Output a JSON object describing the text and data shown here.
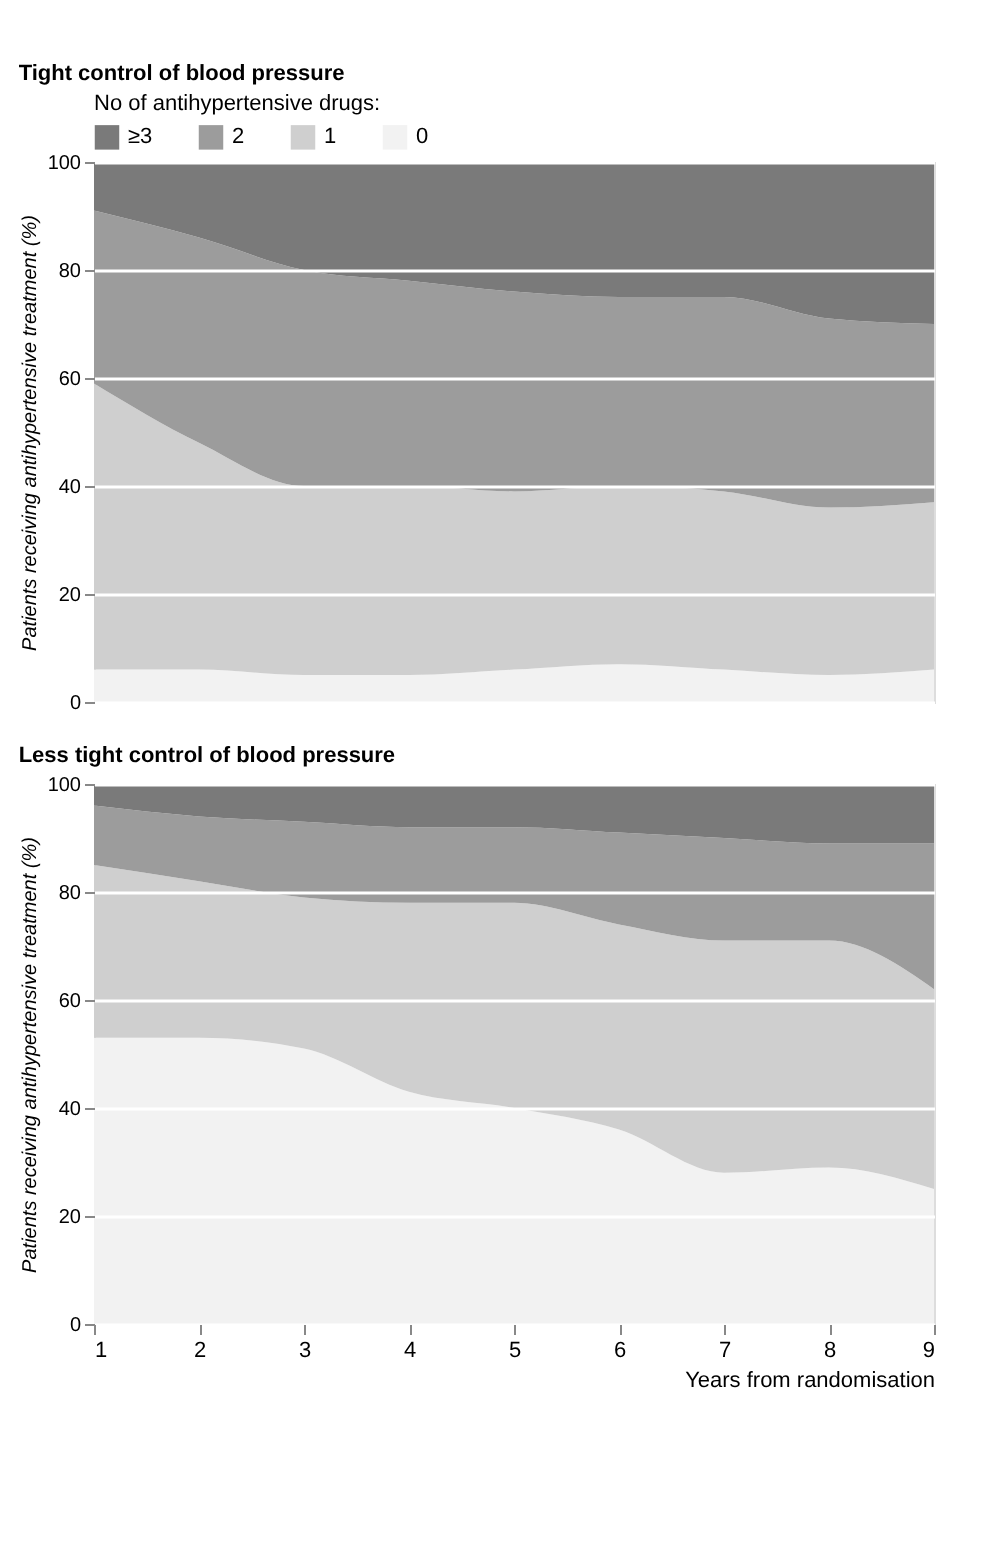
{
  "chart_data": [
    {
      "type": "area",
      "stacked": true,
      "title": "Tight control of blood pressure",
      "ylabel": "Patients receiving antihypertensive treatment (%)",
      "legend_title": "No of antihypertensive drugs:",
      "legend": "top",
      "x": [
        1,
        2,
        3,
        4,
        5,
        6,
        7,
        8,
        9
      ],
      "xlim": [
        1,
        9
      ],
      "xticks": [
        1,
        2,
        3,
        4,
        5,
        6,
        7,
        8,
        9
      ],
      "ylim": [
        0,
        100
      ],
      "yticks": [
        0,
        20,
        40,
        60,
        80,
        100
      ],
      "grid": "y",
      "tick_labels": "y",
      "series": [
        {
          "name": "0",
          "color": "#f2f2f2",
          "values": [
            6,
            6,
            5,
            5,
            6,
            7,
            6,
            5,
            6
          ]
        },
        {
          "name": "1",
          "color": "#cfcfcf",
          "values": [
            53,
            42,
            35,
            35,
            33,
            33,
            33,
            31,
            31
          ]
        },
        {
          "name": "2",
          "color": "#9c9c9c",
          "values": [
            32,
            38,
            40,
            38,
            37,
            35,
            36,
            35,
            33
          ]
        },
        {
          "name": "≥3",
          "color": "#7a7a7a",
          "values": [
            9,
            14,
            20,
            22,
            24,
            25,
            25,
            29,
            30
          ]
        }
      ]
    },
    {
      "type": "area",
      "stacked": true,
      "title": "Less tight control of blood pressure",
      "xlabel": "Years from randomisation",
      "ylabel": "Patients receiving antihypertensive treatment (%)",
      "legend": false,
      "x": [
        1,
        2,
        3,
        4,
        5,
        6,
        7,
        8,
        9
      ],
      "xlim": [
        1,
        9
      ],
      "xticks": [
        1,
        2,
        3,
        4,
        5,
        6,
        7,
        8,
        9
      ],
      "ylim": [
        0,
        100
      ],
      "yticks": [
        0,
        20,
        40,
        60,
        80,
        100
      ],
      "grid": "y",
      "series": [
        {
          "color": "#f2f2f2",
          "values": [
            53,
            53,
            51,
            43,
            40,
            36,
            28,
            29,
            25
          ]
        },
        {
          "color": "#cfcfcf",
          "values": [
            32,
            29,
            28,
            35,
            38,
            38,
            43,
            42,
            37
          ]
        },
        {
          "color": "#9c9c9c",
          "values": [
            11,
            12,
            14,
            14,
            14,
            17,
            19,
            18,
            27
          ]
        },
        {
          "color": "#7a7a7a",
          "values": [
            4,
            6,
            7,
            8,
            8,
            9,
            10,
            11,
            11
          ]
        }
      ]
    }
  ]
}
